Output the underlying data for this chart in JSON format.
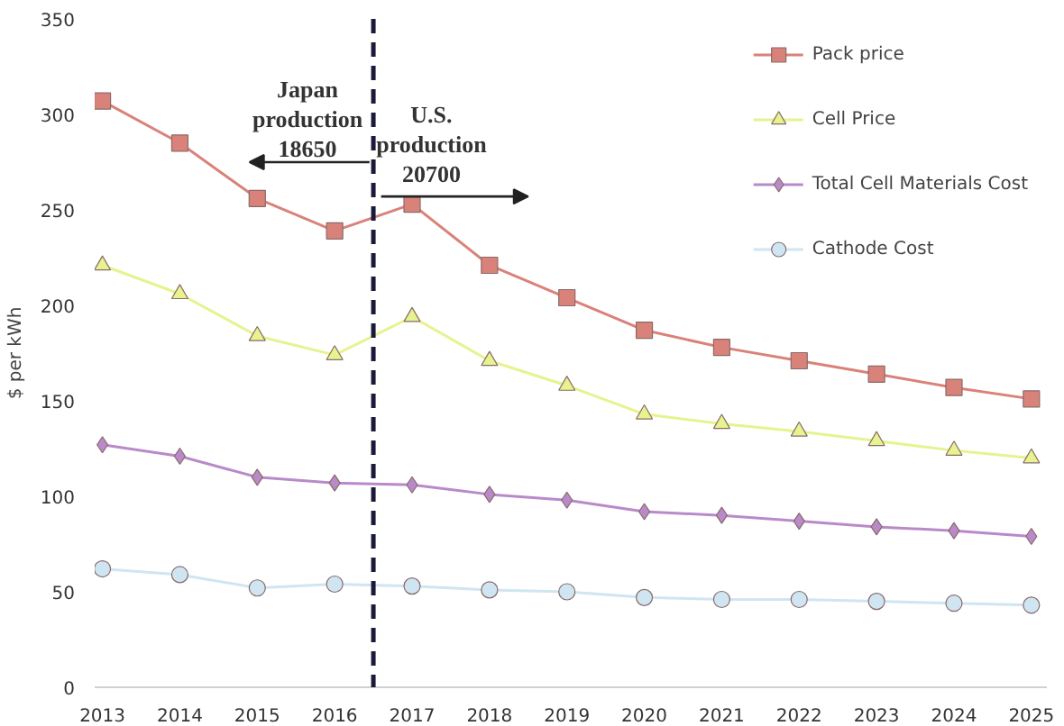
{
  "chart_data": {
    "type": "line",
    "ylabel": "$ per kWh",
    "x": [
      2013,
      2014,
      2015,
      2016,
      2017,
      2018,
      2019,
      2020,
      2021,
      2022,
      2023,
      2024,
      2025
    ],
    "xlim": [
      2012.9,
      2025.2
    ],
    "xticks": [
      2013,
      2014,
      2015,
      2016,
      2017,
      2018,
      2019,
      2020,
      2021,
      2022,
      2023,
      2024,
      2025
    ],
    "ylim": [
      0,
      350
    ],
    "yticks": [
      0,
      50,
      100,
      150,
      200,
      250,
      300,
      350
    ],
    "grid": false,
    "legend": "top right",
    "series": [
      {
        "name": "Pack price",
        "color": "#d9827a",
        "marker": "square",
        "values": [
          307,
          285,
          256,
          239,
          253,
          221,
          204,
          187,
          178,
          171,
          164,
          157,
          151
        ]
      },
      {
        "name": "Cell Price",
        "color": "#e6f38e",
        "marker": "triangle",
        "values": [
          221,
          206,
          184,
          174,
          194,
          171,
          158,
          143,
          138,
          134,
          129,
          124,
          120
        ]
      },
      {
        "name": "Total Cell Materials Cost",
        "color": "#b98ac9",
        "marker": "diamond",
        "values": [
          127,
          121,
          110,
          107,
          106,
          101,
          98,
          92,
          90,
          87,
          84,
          82,
          79
        ]
      },
      {
        "name": "Cathode Cost",
        "color": "#cfe6f2",
        "marker": "circle",
        "values": [
          62,
          59,
          52,
          54,
          53,
          51,
          50,
          47,
          46,
          46,
          45,
          44,
          43
        ]
      }
    ],
    "ref_lines": [
      {
        "axis": "x",
        "value": 2016.5,
        "color": "#1a1a3a",
        "line_style": "dashed"
      }
    ],
    "annotations": [
      {
        "text": "Japan production 18650",
        "x": 2016.5,
        "y": 275
      },
      {
        "text": "U.S. production 20700",
        "x": 2016.5,
        "y": 262
      }
    ]
  }
}
